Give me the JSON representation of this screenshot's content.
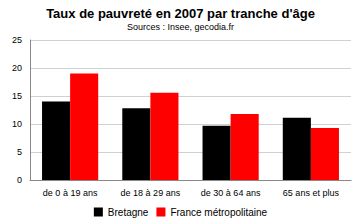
{
  "chart_data": {
    "type": "bar",
    "title": "Taux de pauvreté en 2007 par tranche d'âge",
    "subtitle": "Sources : Insee, gecodia.fr",
    "categories": [
      "de 0 à 19 ans",
      "de 18 à 29 ans",
      "de 30 à 64 ans",
      "65 ans et plus"
    ],
    "series": [
      {
        "name": "Bretagne",
        "color": "#000000",
        "values": [
          14,
          12.8,
          9.7,
          11.1
        ]
      },
      {
        "name": "France métropolitaine",
        "color": "#ff0000",
        "values": [
          19,
          15.6,
          11.8,
          9.3
        ]
      }
    ],
    "ylim": [
      0,
      25
    ],
    "yticks": [
      0,
      5,
      10,
      15,
      20,
      25
    ],
    "grid": true,
    "legend": "bottom"
  }
}
